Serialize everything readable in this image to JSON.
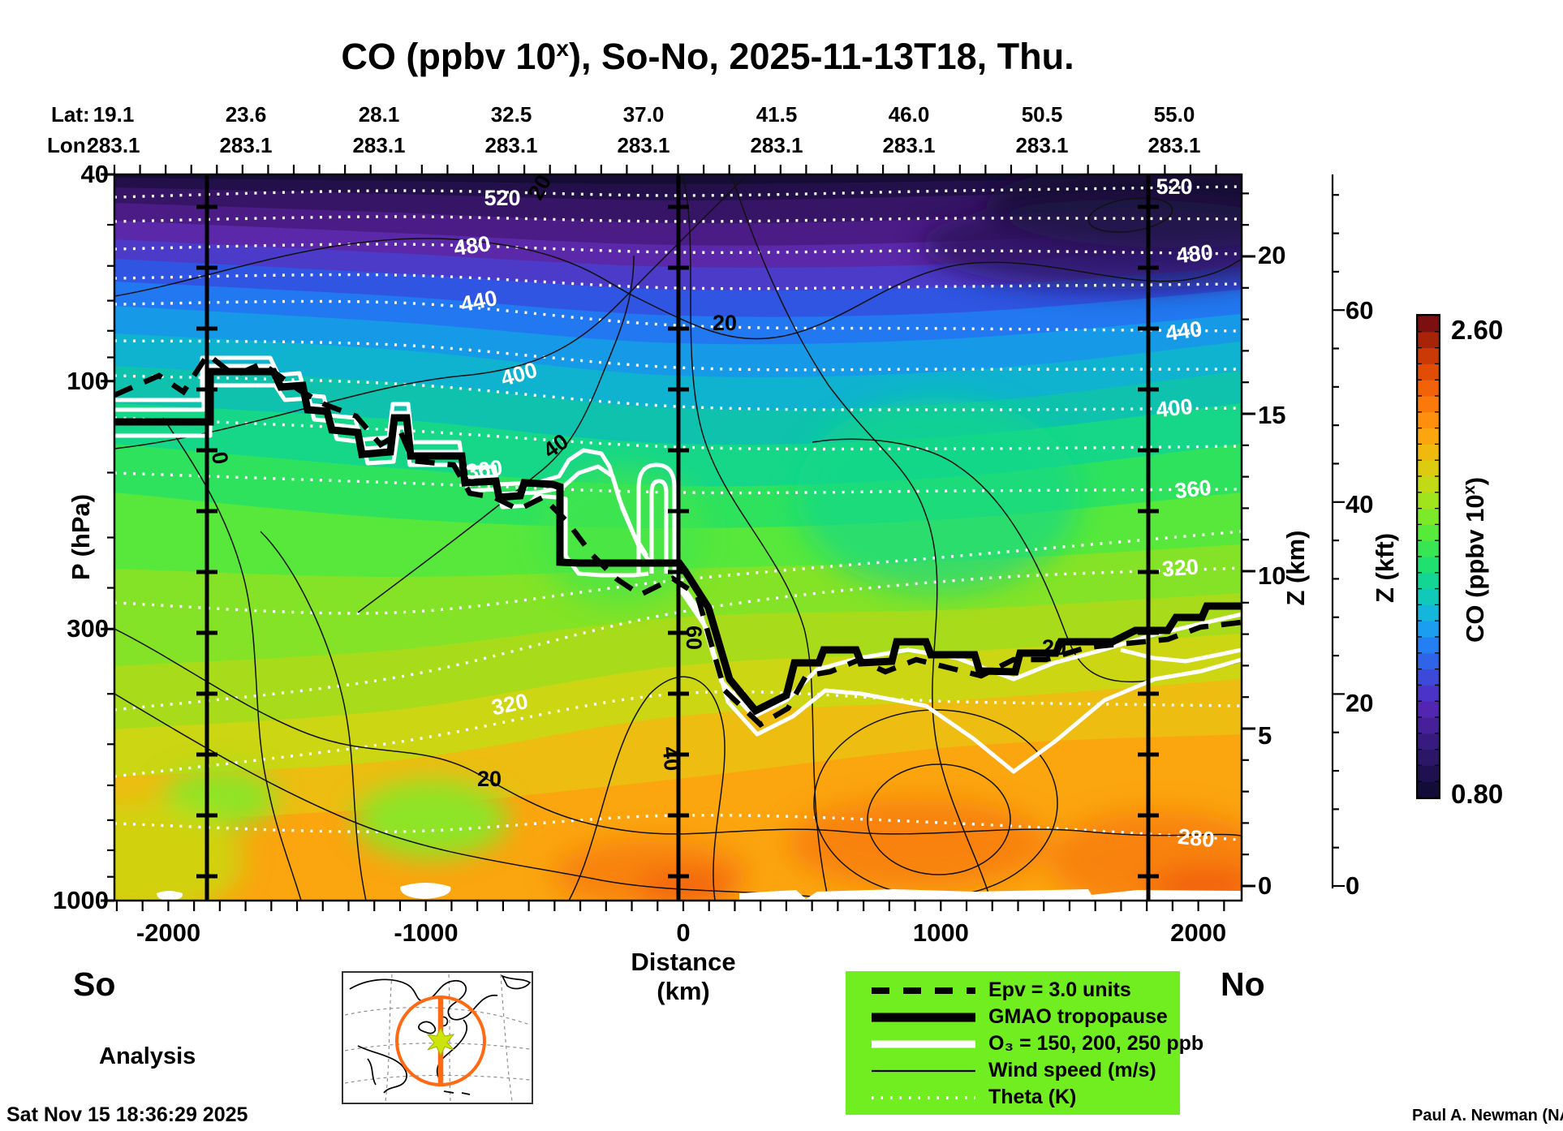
{
  "title": {
    "part1": "CO (ppbv 10",
    "sup": "x",
    "part2": "), So-No, 2025-11-13T18, Thu."
  },
  "top_axis": {
    "lat_label": "Lat:",
    "lon_label": "Lon:",
    "lat_values": [
      "19.1",
      "23.6",
      "28.1",
      "32.5",
      "37.0",
      "41.5",
      "46.0",
      "50.5",
      "55.0"
    ],
    "lon_values": [
      "283.1",
      "283.1",
      "283.1",
      "283.1",
      "283.1",
      "283.1",
      "283.1",
      "283.1",
      "283.1"
    ]
  },
  "axes": {
    "pressure": {
      "label": "P (hPa)",
      "ticks": [
        "40",
        "100",
        "300",
        "1000"
      ]
    },
    "distance": {
      "label": "Distance (km)",
      "ticks": [
        "-2000",
        "-1000",
        "0",
        "1000",
        "2000"
      ],
      "left_end": "So",
      "right_end": "No"
    },
    "z_km": {
      "label": "Z (km)",
      "ticks": [
        "20",
        "15",
        "10",
        "5",
        "0"
      ]
    },
    "z_kft": {
      "label": "Z (kft)",
      "ticks": [
        "60",
        "40",
        "20",
        "0"
      ]
    }
  },
  "colorbar": {
    "label_part1": "CO (ppbv 10",
    "label_sup": "x",
    "label_part2": ")",
    "max": "2.60",
    "min": "0.80",
    "colors": [
      "#140c38",
      "#1f1150",
      "#2b1668",
      "#381b80",
      "#452098",
      "#5226b0",
      "#4a33c6",
      "#3d49d9",
      "#2f63e8",
      "#2480f2",
      "#1b9df0",
      "#14b6da",
      "#10c9b8",
      "#14d694",
      "#20e070",
      "#38e654",
      "#58ea3a",
      "#7cea28",
      "#a0e41e",
      "#c2da16",
      "#ddcb10",
      "#efb90e",
      "#fba50f",
      "#ff8f0d",
      "#fb790b",
      "#f26309",
      "#e14c07",
      "#cb3906",
      "#a82408",
      "#7c1010"
    ]
  },
  "legend": {
    "background": "#70ee20",
    "items": [
      {
        "label": "Epv = 3.0 units",
        "style": "dashed-black"
      },
      {
        "label": "GMAO tropopause",
        "style": "thick-black"
      },
      {
        "label": "O₃ = 150, 200, 250 ppb",
        "style": "thick-white"
      },
      {
        "label": "Wind speed (m/s)",
        "style": "thin-black"
      },
      {
        "label": "Theta (K)",
        "style": "dotted-white"
      }
    ]
  },
  "footer": {
    "analysis": "Analysis",
    "timestamp": "Sat Nov 15 18:36:29 2025",
    "credit": "Paul A. Newman (NASA"
  },
  "contour_labels": {
    "theta_left": [
      "520",
      "480",
      "440",
      "400",
      "360",
      "320"
    ],
    "theta_right": [
      "520",
      "480",
      "440",
      "400",
      "360",
      "320",
      "280"
    ],
    "wind": [
      "20",
      "20",
      "40",
      "60",
      "40",
      "20",
      "20",
      "0"
    ]
  },
  "chart_data": {
    "type": "heatmap",
    "title": "CO (ppbv 10^x), So-No, 2025-11-13T18, Thu.",
    "xlabel": "Distance (km)",
    "x_ticks": [
      -2000,
      -1000,
      0,
      1000,
      2000
    ],
    "x_range_km": [
      -2200,
      2200
    ],
    "ylabel_left": "P (hPa)",
    "y_scale": "log",
    "y_ticks_hpa": [
      40,
      100,
      300,
      1000
    ],
    "y_range_hpa": [
      40,
      1000
    ],
    "ylabel_right": "Z (km)",
    "z_km_ticks": [
      20,
      15,
      10,
      5,
      0
    ],
    "ylabel_far_right": "Z (kft)",
    "z_kft_ticks": [
      60,
      40,
      20,
      0
    ],
    "colorbar": {
      "label": "CO (ppbv 10^x)",
      "min": 0.8,
      "max": 2.6,
      "n_segments": 30
    },
    "section_endpoints": {
      "south_label": "So",
      "north_label": "No"
    },
    "track": {
      "lat": [
        19.1,
        23.6,
        28.1,
        32.5,
        37.0,
        41.5,
        46.0,
        50.5,
        55.0
      ],
      "lon": [
        283.1,
        283.1,
        283.1,
        283.1,
        283.1,
        283.1,
        283.1,
        283.1,
        283.1
      ]
    },
    "vertical_marker_lines_km": [
      -1850,
      0,
      1850
    ],
    "overlays": [
      {
        "name": "Theta (K)",
        "style": "white-dotted",
        "labeled_levels": [
          280,
          320,
          360,
          400,
          440,
          480,
          520
        ],
        "contour_interval_K": 20
      },
      {
        "name": "Wind speed (m/s)",
        "style": "thin-black",
        "labeled_levels": [
          0,
          20,
          40,
          60
        ]
      },
      {
        "name": "Epv = 3.0 units",
        "style": "black-dashed"
      },
      {
        "name": "GMAO tropopause",
        "style": "thick-black"
      },
      {
        "name": "O3 = 150, 200, 250 ppb",
        "style": "white-solid"
      }
    ],
    "field_description": "CO curtain along 283.1E from 19.1N (So) to 55.0N (No): low CO (0.8-1.2, dark purple/blue) in stratosphere above the tropopause; high CO (1.8-2.2, orange) in the lower troposphere; tropopause near 100 hPa on the south side stepping down to ~250-300 hPa north of the jet near x=0 km",
    "mode": "Analysis"
  }
}
